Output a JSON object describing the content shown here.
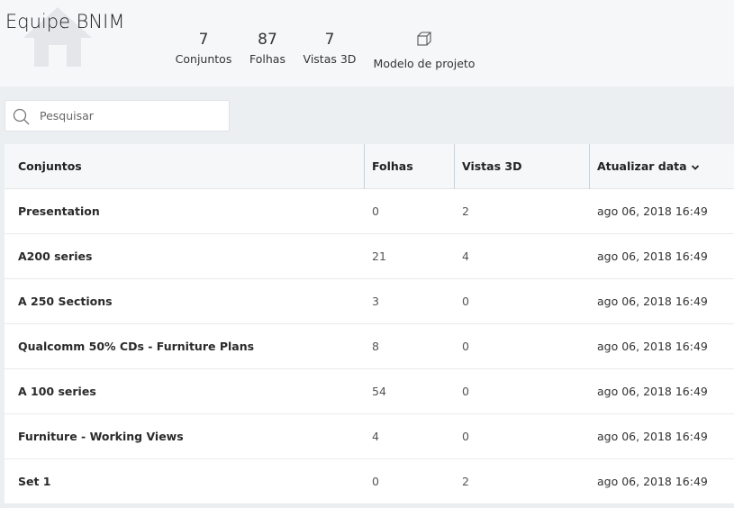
{
  "header": {
    "title": "Equipe BNIM",
    "stats": [
      {
        "value": "7",
        "label": "Conjuntos"
      },
      {
        "value": "87",
        "label": "Folhas"
      },
      {
        "value": "7",
        "label": "Vistas 3D"
      },
      {
        "icon": "cube-icon",
        "label": "Modelo de projeto"
      }
    ]
  },
  "search": {
    "placeholder": "Pesquisar",
    "value": ""
  },
  "table": {
    "columns": [
      "Conjuntos",
      "Folhas",
      "Vistas 3D",
      "Atualizar data"
    ],
    "sort_indicator": "chevron-down-icon",
    "rows": [
      [
        "Presentation",
        "0",
        "2",
        "ago 06, 2018 16:49"
      ],
      [
        "A200 series",
        "21",
        "4",
        "ago 06, 2018 16:49"
      ],
      [
        "A 250 Sections",
        "3",
        "0",
        "ago 06, 2018 16:49"
      ],
      [
        "Qualcomm 50% CDs - Furniture Plans",
        "8",
        "0",
        "ago 06, 2018 16:49"
      ],
      [
        "A 100 series",
        "54",
        "0",
        "ago 06, 2018 16:49"
      ],
      [
        "Furniture - Working Views",
        "4",
        "0",
        "ago 06, 2018 16:49"
      ],
      [
        "Set 1",
        "0",
        "2",
        "ago 06, 2018 16:49"
      ]
    ]
  },
  "colors": {
    "header_bg": "#f6f7f9",
    "page_bg": "#eceff2",
    "column_separator": "#c5d2dc"
  }
}
